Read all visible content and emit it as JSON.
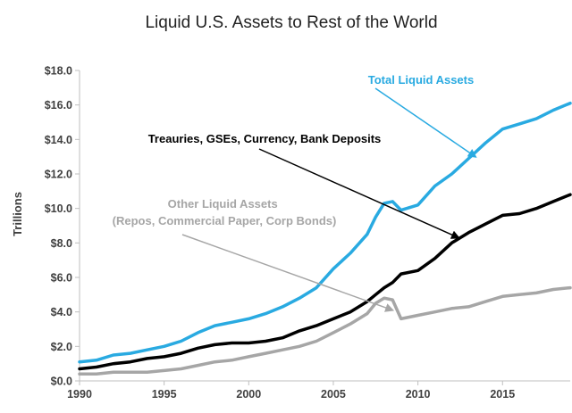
{
  "chart_data": {
    "type": "line",
    "title": "Liquid U.S. Assets to Rest of the World",
    "xlabel": "",
    "ylabel": "Trillions",
    "xlim": [
      1990,
      2019
    ],
    "ylim": [
      0,
      18
    ],
    "grid": false,
    "x_ticks": [
      1990,
      1995,
      2000,
      2005,
      2010,
      2015
    ],
    "x_tick_labels": [
      "1990",
      "1995",
      "2000",
      "2005",
      "2010",
      "2015"
    ],
    "y_ticks": [
      0,
      2,
      4,
      6,
      8,
      10,
      12,
      14,
      16,
      18
    ],
    "y_tick_labels": [
      "$0.0",
      "$2.0",
      "$4.0",
      "$6.0",
      "$8.0",
      "$10.0",
      "$12.0",
      "$14.0",
      "$16.0",
      "$18.0"
    ],
    "x": [
      1990,
      1991,
      1992,
      1993,
      1994,
      1995,
      1996,
      1997,
      1998,
      1999,
      2000,
      2001,
      2002,
      2003,
      2004,
      2005,
      2006,
      2007,
      2007.5,
      2008,
      2008.5,
      2009,
      2010,
      2011,
      2012,
      2013,
      2014,
      2015,
      2016,
      2017,
      2018,
      2019
    ],
    "series": [
      {
        "name": "Total Liquid Assets",
        "color": "#29aae1",
        "values": [
          1.1,
          1.2,
          1.5,
          1.6,
          1.8,
          2.0,
          2.3,
          2.8,
          3.2,
          3.4,
          3.6,
          3.9,
          4.3,
          4.8,
          5.4,
          6.5,
          7.4,
          8.5,
          9.5,
          10.3,
          10.4,
          9.9,
          10.2,
          11.3,
          12.0,
          12.9,
          13.8,
          14.6,
          14.9,
          15.2,
          15.7,
          16.1
        ]
      },
      {
        "name": "Treauries, GSEs, Currency, Bank Deposits",
        "color": "#000000",
        "values": [
          0.7,
          0.8,
          1.0,
          1.1,
          1.3,
          1.4,
          1.6,
          1.9,
          2.1,
          2.2,
          2.2,
          2.3,
          2.5,
          2.9,
          3.2,
          3.6,
          4.0,
          4.6,
          5.0,
          5.4,
          5.7,
          6.2,
          6.4,
          7.1,
          8.0,
          8.6,
          9.1,
          9.6,
          9.7,
          10.0,
          10.4,
          10.8
        ]
      },
      {
        "name": "Other Liquid Assets (Repos, Commercial Paper, Corp Bonds)",
        "color": "#a6a6a6",
        "values": [
          0.4,
          0.4,
          0.5,
          0.5,
          0.5,
          0.6,
          0.7,
          0.9,
          1.1,
          1.2,
          1.4,
          1.6,
          1.8,
          2.0,
          2.3,
          2.8,
          3.3,
          3.9,
          4.5,
          4.8,
          4.7,
          3.6,
          3.8,
          4.0,
          4.2,
          4.3,
          4.6,
          4.9,
          5.0,
          5.1,
          5.3,
          5.4
        ]
      }
    ],
    "annotations": [
      {
        "lines": [
          "Total Liquid Assets"
        ],
        "color": "#29aae1",
        "arrow_to": [
          2013.4,
          13.0
        ]
      },
      {
        "lines": [
          "Treauries, GSEs, Currency, Bank Deposits"
        ],
        "color": "#000000",
        "arrow_to": [
          2012.4,
          8.3
        ]
      },
      {
        "lines": [
          "Other Liquid Assets",
          "(Repos, Commercial Paper, Corp Bonds)"
        ],
        "color": "#a6a6a6",
        "arrow_to": [
          2008.5,
          4.1
        ]
      }
    ]
  }
}
